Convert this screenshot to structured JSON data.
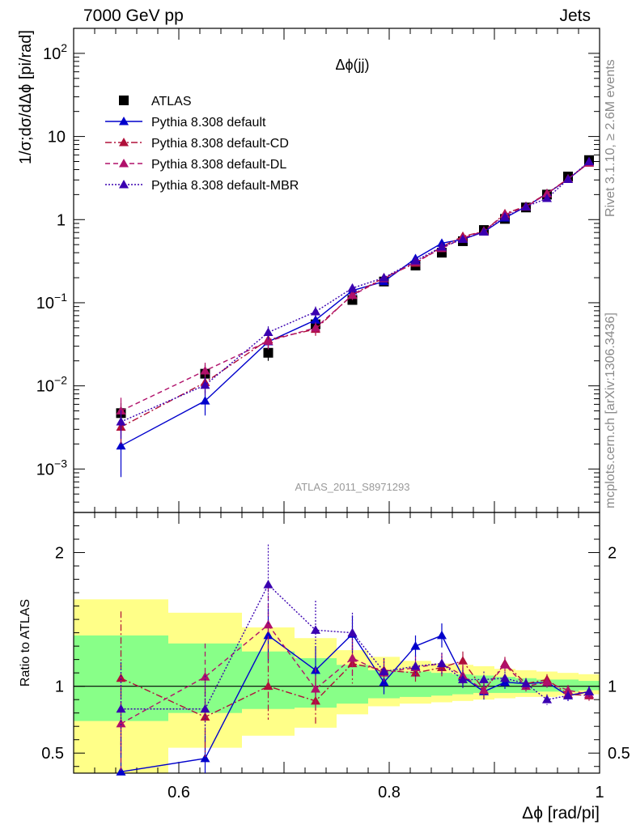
{
  "header": {
    "left": "7000 GeV pp",
    "right": "Jets"
  },
  "side_text": {
    "rivet": "Rivet 3.1.10, ≥ 2.6M events",
    "url": "mcplots.cern.ch [arXiv:1306.3436]"
  },
  "chart_data": [
    {
      "type": "scatter",
      "title": "Δϕ(jj)",
      "watermark": "ATLAS_2011_S8971293",
      "xlabel": "Δϕ [rad/pi]",
      "ylabel": "1/σ;dσ/dΔϕ [pi/rad]",
      "xlim": [
        0.5,
        1.0
      ],
      "ylim": [
        0.0003,
        200
      ],
      "yscale": "log",
      "y_ticks": [
        "10^-3",
        "10^-2",
        "10^-1",
        "1",
        "10",
        "10^2"
      ],
      "legend_position": "top-left",
      "x": [
        0.545,
        0.625,
        0.685,
        0.73,
        0.765,
        0.795,
        0.825,
        0.85,
        0.87,
        0.89,
        0.91,
        0.93,
        0.95,
        0.97,
        0.99
      ],
      "series": [
        {
          "name": "ATLAS",
          "color": "#000000",
          "marker": "square",
          "line": "none",
          "values": [
            0.0047,
            0.014,
            0.025,
            0.055,
            0.108,
            0.18,
            0.28,
            0.4,
            0.55,
            0.75,
            1.02,
            1.4,
            2.0,
            3.3,
            5.2
          ],
          "errors": [
            0.0015,
            0.004,
            0.005,
            0.006,
            0.008,
            0.01,
            0.015,
            0.02,
            0.02,
            0.03,
            0.04,
            0.05,
            0.08,
            0.12,
            0.2
          ]
        },
        {
          "name": "Pythia 8.308 default",
          "color": "#0000cc",
          "marker": "triangle",
          "line": "solid",
          "values": [
            0.0019,
            0.0066,
            0.034,
            0.062,
            0.14,
            0.18,
            0.34,
            0.52,
            0.58,
            0.71,
            1.05,
            1.43,
            2.06,
            3.05,
            4.9
          ],
          "errors": [
            0.0011,
            0.0022,
            0.006,
            0.012,
            0.015,
            0.015,
            0.025,
            0.04,
            0.04,
            0.04,
            0.05,
            0.06,
            0.08,
            0.12,
            0.18
          ]
        },
        {
          "name": "Pythia 8.308 default-CD",
          "color": "#b0103a",
          "marker": "triangle",
          "line": "dashdot",
          "values": [
            0.0032,
            0.011,
            0.036,
            0.048,
            0.125,
            0.2,
            0.3,
            0.47,
            0.63,
            0.72,
            1.18,
            1.45,
            2.07,
            3.1,
            4.8
          ],
          "errors": [
            0.0012,
            0.0028,
            0.007,
            0.008,
            0.015,
            0.015,
            0.025,
            0.035,
            0.04,
            0.04,
            0.05,
            0.06,
            0.08,
            0.12,
            0.18
          ]
        },
        {
          "name": "Pythia 8.308 default-DL",
          "color": "#b0106a",
          "marker": "triangle",
          "line": "dashed",
          "values": [
            0.005,
            0.0152,
            0.0345,
            0.05,
            0.123,
            0.195,
            0.31,
            0.45,
            0.6,
            0.73,
            1.15,
            1.42,
            2.05,
            3.08,
            4.85
          ],
          "errors": [
            0.0022,
            0.0038,
            0.007,
            0.008,
            0.015,
            0.015,
            0.025,
            0.035,
            0.04,
            0.04,
            0.05,
            0.06,
            0.08,
            0.12,
            0.18
          ]
        },
        {
          "name": "Pythia 8.308 default-MBR",
          "color": "#3a00b0",
          "marker": "triangle",
          "line": "dotted",
          "values": [
            0.0037,
            0.0102,
            0.044,
            0.078,
            0.15,
            0.2,
            0.32,
            0.47,
            0.58,
            0.71,
            1.08,
            1.43,
            1.8,
            3.05,
            5.0
          ],
          "errors": [
            0.0014,
            0.0025,
            0.008,
            0.012,
            0.018,
            0.017,
            0.025,
            0.035,
            0.04,
            0.04,
            0.05,
            0.06,
            0.08,
            0.12,
            0.18
          ]
        }
      ]
    },
    {
      "type": "scatter",
      "ylabel": "Ratio to ATLAS",
      "xlabel": "Δϕ [rad/pi]",
      "xlim": [
        0.5,
        1.0
      ],
      "ylim": [
        0.35,
        2.3
      ],
      "y_ticks": [
        0.5,
        1,
        2
      ],
      "x_ticks": [
        0.6,
        0.8,
        1
      ],
      "reference_line": 1,
      "bin_edges": [
        0.5,
        0.59,
        0.66,
        0.71,
        0.75,
        0.78,
        0.81,
        0.84,
        0.86,
        0.88,
        0.9,
        0.92,
        0.94,
        0.96,
        0.98,
        1.0
      ],
      "band_inner": [
        [
          0.74,
          1.38
        ],
        [
          0.8,
          1.32
        ],
        [
          0.83,
          1.26
        ],
        [
          0.84,
          1.21
        ],
        [
          0.87,
          1.16
        ],
        [
          0.91,
          1.12
        ],
        [
          0.92,
          1.11
        ],
        [
          0.93,
          1.1
        ],
        [
          0.94,
          1.09
        ],
        [
          0.95,
          1.08
        ],
        [
          0.95,
          1.07
        ],
        [
          0.95,
          1.06
        ],
        [
          0.96,
          1.05
        ],
        [
          0.96,
          1.05
        ],
        [
          0.97,
          1.04
        ]
      ],
      "band_outer": [
        [
          0.3,
          1.65
        ],
        [
          0.54,
          1.55
        ],
        [
          0.63,
          1.44
        ],
        [
          0.69,
          1.36
        ],
        [
          0.79,
          1.27
        ],
        [
          0.85,
          1.22
        ],
        [
          0.87,
          1.19
        ],
        [
          0.88,
          1.17
        ],
        [
          0.89,
          1.16
        ],
        [
          0.9,
          1.15
        ],
        [
          0.91,
          1.13
        ],
        [
          0.92,
          1.12
        ],
        [
          0.92,
          1.11
        ],
        [
          0.93,
          1.1
        ],
        [
          0.94,
          1.09
        ]
      ],
      "x": [
        0.545,
        0.625,
        0.685,
        0.73,
        0.765,
        0.795,
        0.825,
        0.85,
        0.87,
        0.89,
        0.91,
        0.93,
        0.95,
        0.97,
        0.99
      ],
      "series": [
        {
          "name": "Pythia 8.308 default",
          "color": "#0000cc",
          "line": "solid",
          "values": [
            0.36,
            0.46,
            1.38,
            1.12,
            1.39,
            1.03,
            1.3,
            1.38,
            1.07,
            0.96,
            1.03,
            1.02,
            1.03,
            0.93,
            0.96
          ],
          "errors": [
            0.25,
            0.17,
            0.2,
            0.18,
            0.14,
            0.09,
            0.08,
            0.09,
            0.07,
            0.06,
            0.05,
            0.04,
            0.04,
            0.04,
            0.04
          ]
        },
        {
          "name": "Pythia 8.308 default-CD",
          "color": "#b0103a",
          "line": "dashdot",
          "values": [
            1.06,
            0.77,
            1.0,
            0.89,
            1.17,
            1.12,
            1.1,
            1.14,
            1.19,
            0.97,
            1.17,
            1.02,
            1.05,
            0.94,
            0.93
          ],
          "errors": [
            0.5,
            0.3,
            0.25,
            0.17,
            0.15,
            0.09,
            0.08,
            0.08,
            0.07,
            0.06,
            0.05,
            0.04,
            0.04,
            0.04,
            0.04
          ]
        },
        {
          "name": "Pythia 8.308 default-DL",
          "color": "#b0106a",
          "line": "dashed",
          "values": [
            0.72,
            1.07,
            1.46,
            0.98,
            1.21,
            1.1,
            1.14,
            1.17,
            1.08,
            0.97,
            1.16,
            1.0,
            1.03,
            0.97,
            0.94
          ],
          "errors": [
            0.35,
            0.25,
            0.28,
            0.16,
            0.15,
            0.09,
            0.08,
            0.08,
            0.07,
            0.06,
            0.05,
            0.04,
            0.04,
            0.04,
            0.04
          ]
        },
        {
          "name": "Pythia 8.308 default-MBR",
          "color": "#3a00b0",
          "line": "dotted",
          "values": [
            0.83,
            0.83,
            1.76,
            1.42,
            1.4,
            1.11,
            1.15,
            1.17,
            1.05,
            1.05,
            1.06,
            1.02,
            0.9,
            0.93,
            0.96
          ],
          "errors": [
            0.35,
            0.25,
            0.3,
            0.22,
            0.15,
            0.1,
            0.08,
            0.08,
            0.07,
            0.06,
            0.05,
            0.04,
            0.04,
            0.04,
            0.04
          ]
        }
      ]
    }
  ]
}
